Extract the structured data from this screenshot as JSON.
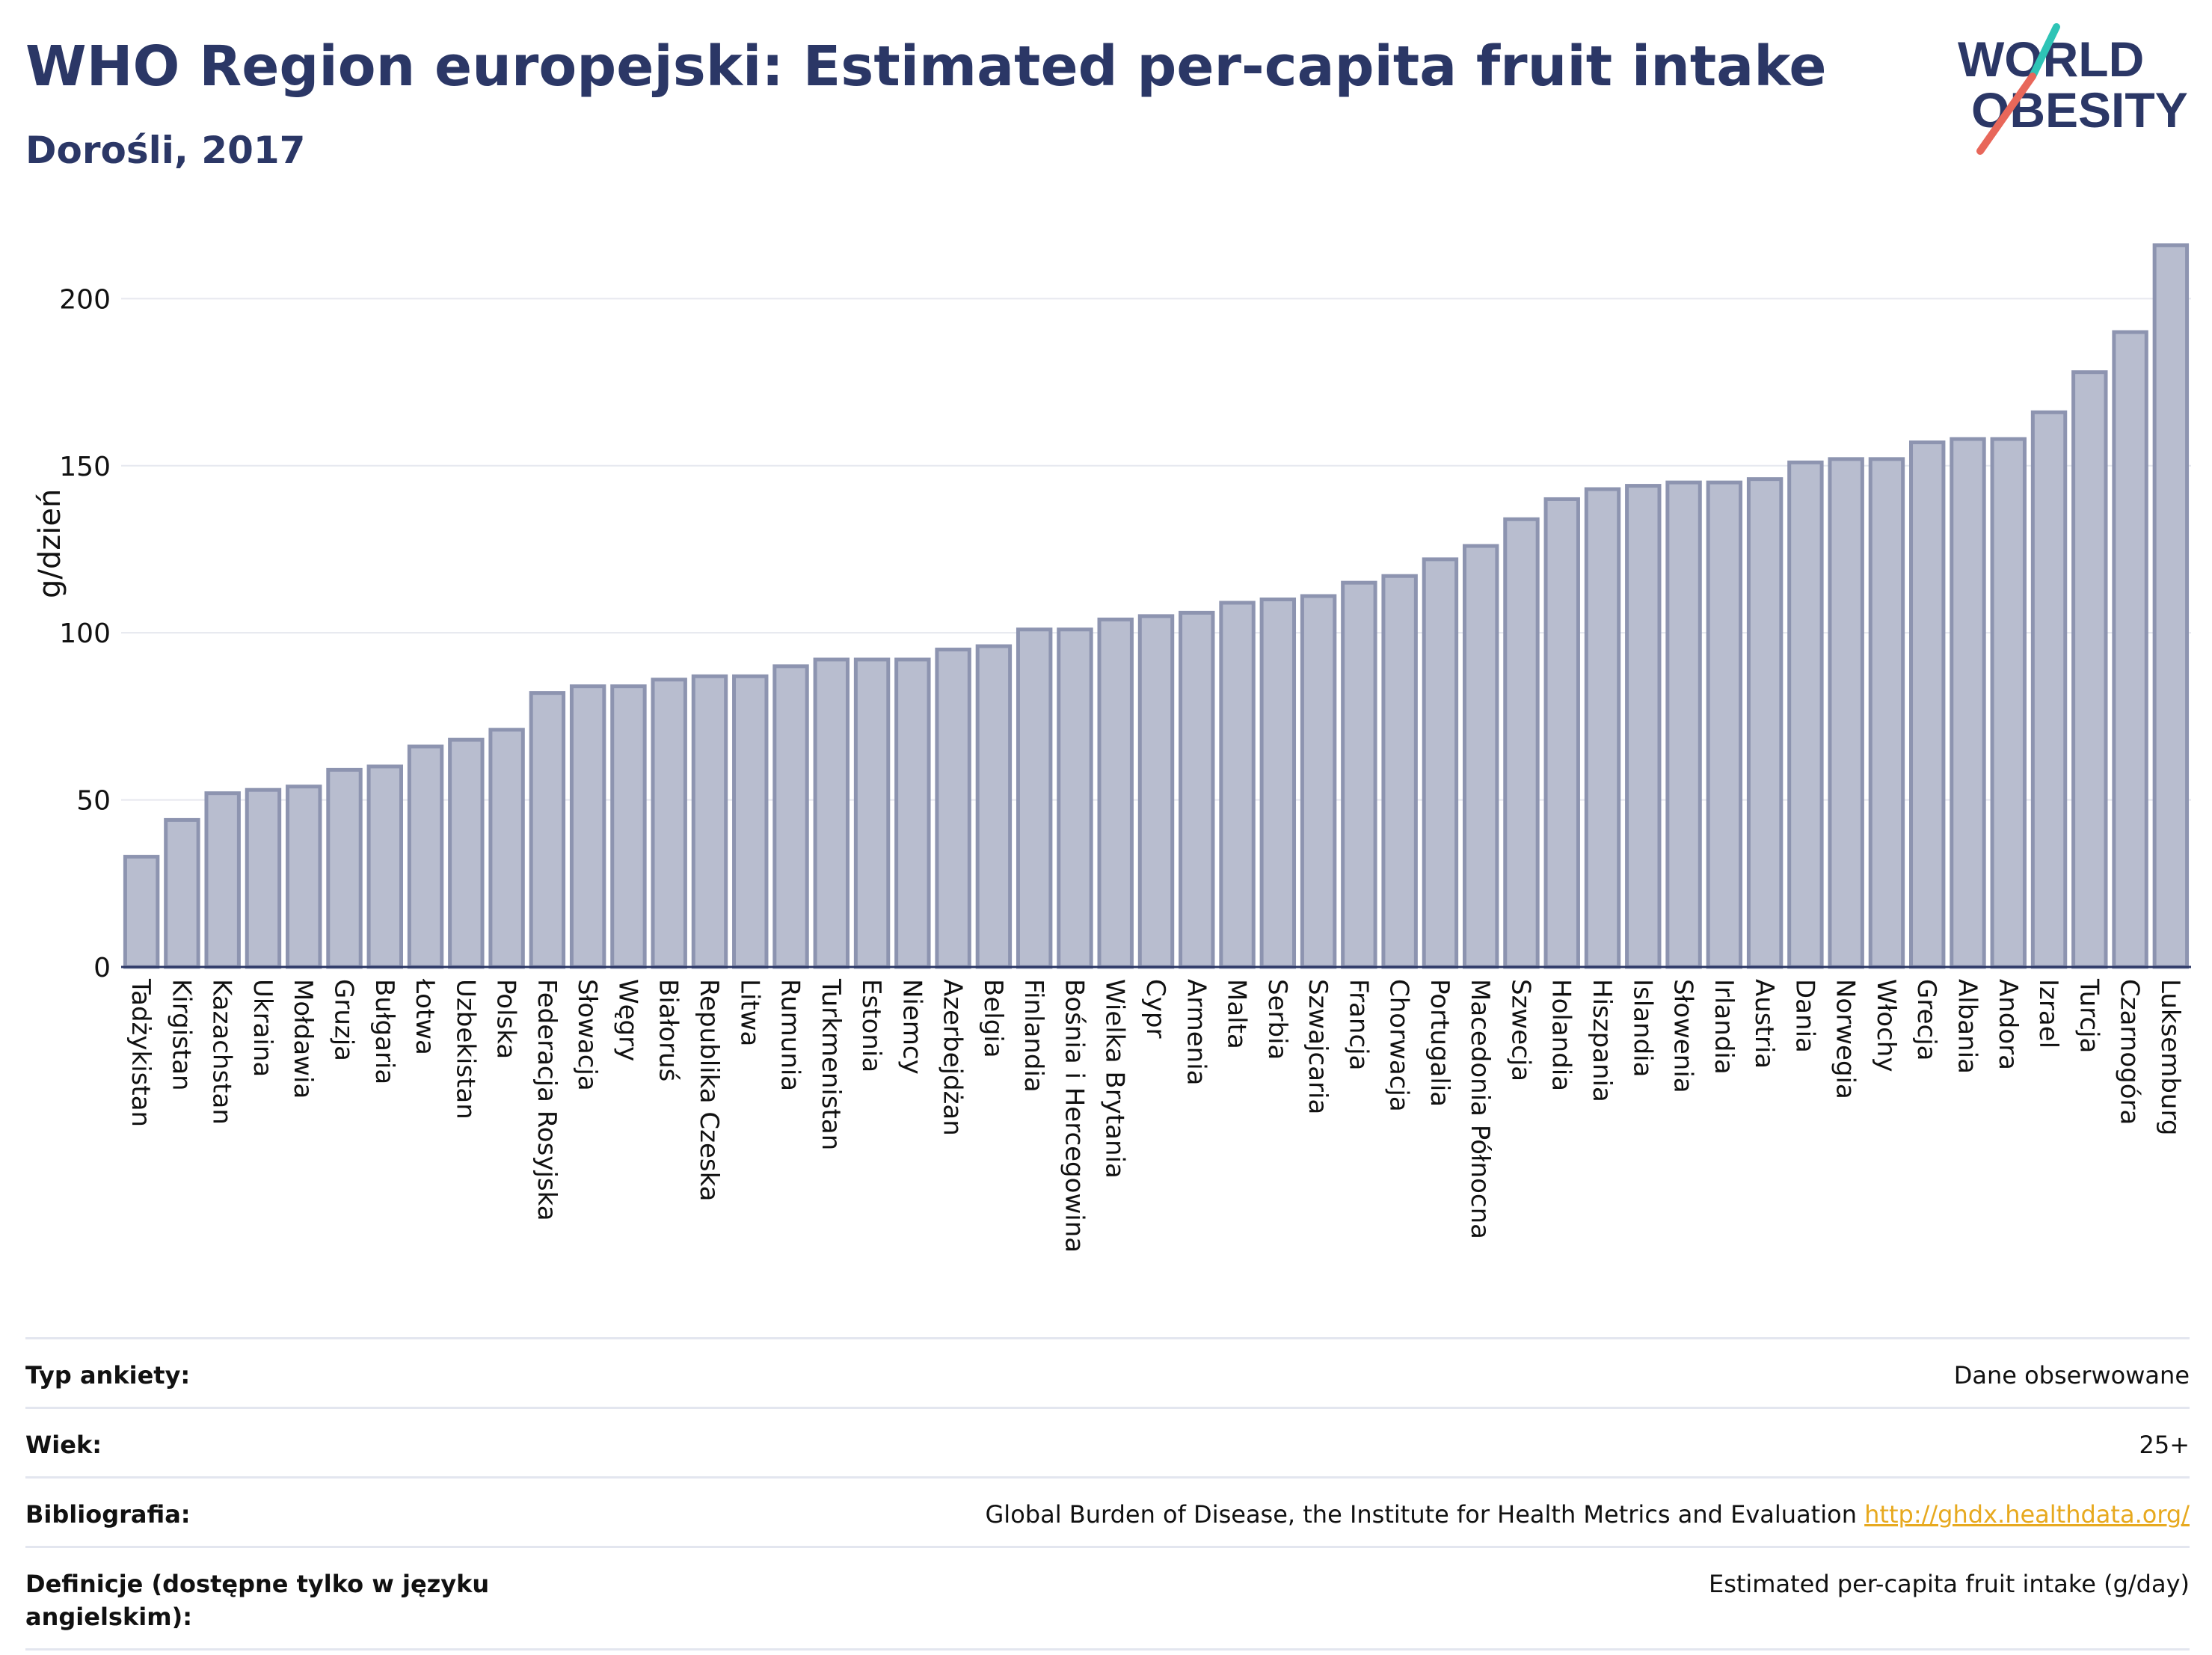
{
  "header": {
    "title": "WHO Region europejski: Estimated per-capita fruit intake",
    "subtitle": "Dorośli, 2017"
  },
  "logo": {
    "line1": "WORLD",
    "line2": "OBESITY",
    "accent_teal": "#2ec4b6",
    "accent_red": "#e8675a"
  },
  "chart_data": {
    "type": "bar",
    "ylabel": "g/dzień",
    "ylim": [
      0,
      220
    ],
    "yticks": [
      0,
      50,
      100,
      150,
      200
    ],
    "grid": true,
    "bar_color": "#b8bdcf",
    "bar_edge": "#8d94b0",
    "categories": [
      "Tadżykistan",
      "Kirgistan",
      "Kazachstan",
      "Ukraina",
      "Mołdawia",
      "Gruzja",
      "Bułgaria",
      "Łotwa",
      "Uzbekistan",
      "Polska",
      "Federacja Rosyjska",
      "Słowacja",
      "Węgry",
      "Białoruś",
      "Republika Czeska",
      "Litwa",
      "Rumunia",
      "Turkmenistan",
      "Estonia",
      "Niemcy",
      "Azerbejdżan",
      "Belgia",
      "Finlandia",
      "Bośnia i Hercegowina",
      "Wielka Brytania",
      "Cypr",
      "Armenia",
      "Malta",
      "Serbia",
      "Szwajcaria",
      "Francja",
      "Chorwacja",
      "Portugalia",
      "Macedonia Północna",
      "Szwecja",
      "Holandia",
      "Hiszpania",
      "Islandia",
      "Słowenia",
      "Irlandia",
      "Austria",
      "Dania",
      "Norwegia",
      "Włochy",
      "Grecja",
      "Albania",
      "Andora",
      "Izrael",
      "Turcja",
      "Czarnogóra",
      "Luksemburg"
    ],
    "values": [
      33,
      44,
      52,
      53,
      54,
      59,
      60,
      66,
      68,
      71,
      82,
      84,
      84,
      86,
      87,
      87,
      90,
      92,
      92,
      92,
      95,
      96,
      101,
      101,
      104,
      105,
      106,
      109,
      110,
      111,
      115,
      117,
      122,
      126,
      134,
      140,
      143,
      144,
      145,
      145,
      146,
      151,
      152,
      152,
      157,
      158,
      158,
      166,
      178,
      190,
      216
    ]
  },
  "meta": {
    "rows": [
      {
        "key": "Typ ankiety:",
        "value": "Dane obserwowane"
      },
      {
        "key": "Wiek:",
        "value": "25+"
      },
      {
        "key": "Bibliografia:",
        "value": "Global Burden of Disease, the Institute for Health Metrics and Evaluation",
        "link": "http://ghdx.healthdata.org/"
      },
      {
        "key": "Definicje (dostępne tylko w języku angielskim):",
        "value": "Estimated per-capita fruit intake (g/day)"
      }
    ]
  }
}
